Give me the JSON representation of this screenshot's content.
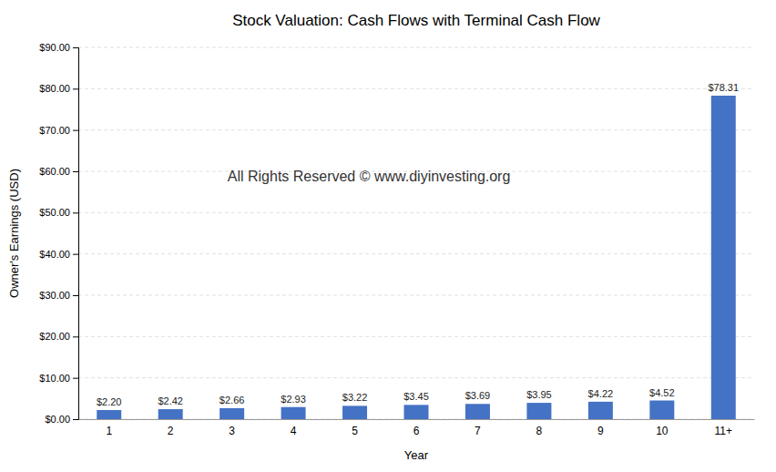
{
  "chart_data": {
    "type": "bar",
    "title": "Stock Valuation: Cash Flows with Terminal Cash Flow",
    "xlabel": "Year",
    "ylabel": "Owner's Earnings (USD)",
    "categories": [
      "1",
      "2",
      "3",
      "4",
      "5",
      "6",
      "7",
      "8",
      "9",
      "10",
      "11+"
    ],
    "values": [
      2.2,
      2.42,
      2.66,
      2.93,
      3.22,
      3.45,
      3.69,
      3.95,
      4.22,
      4.52,
      78.31
    ],
    "value_labels": [
      "$2.20",
      "$2.42",
      "$2.66",
      "$2.93",
      "$3.22",
      "$3.45",
      "$3.69",
      "$3.95",
      "$4.22",
      "$4.52",
      "$78.31"
    ],
    "color": "#4472C4",
    "ylim": [
      0,
      90
    ],
    "yticks": [
      {
        "value": 0,
        "label": "$0.00"
      },
      {
        "value": 10,
        "label": "$10.00"
      },
      {
        "value": 20,
        "label": "$20.00"
      },
      {
        "value": 30,
        "label": "$30.00"
      },
      {
        "value": 40,
        "label": "$40.00"
      },
      {
        "value": 50,
        "label": "$50.00"
      },
      {
        "value": 60,
        "label": "$60.00"
      },
      {
        "value": 70,
        "label": "$70.00"
      },
      {
        "value": 80,
        "label": "$80.00"
      },
      {
        "value": 90,
        "label": "$90.00"
      }
    ],
    "grid": true,
    "data_labels": true,
    "annotations": [
      "All Rights Reserved © www.diyinvesting.org"
    ]
  }
}
